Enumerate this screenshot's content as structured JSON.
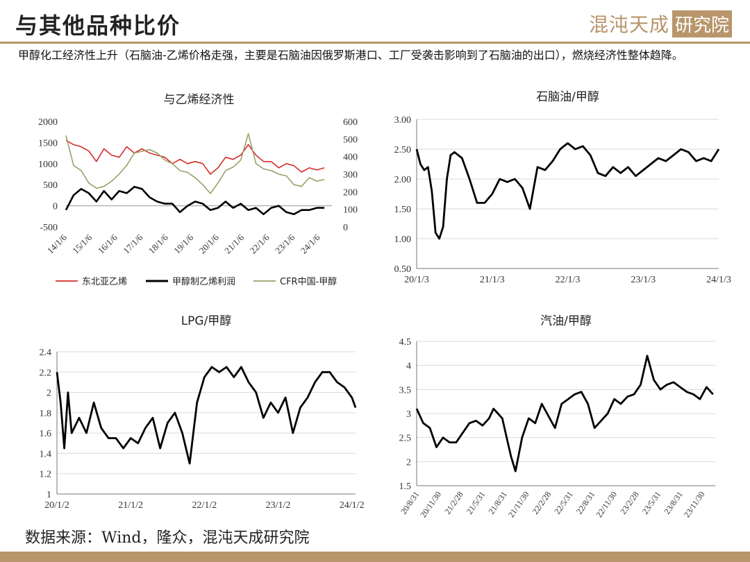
{
  "header": {
    "title": "与其他品种比价",
    "logo_text": "混沌天成",
    "logo_box": "研究院"
  },
  "description": "甲醇化工经济性上升（石脑油-乙烯价格走强，主要是石脑油因俄罗斯港口、工厂受袭击影响到了石脑油的出口），燃烧经济性整体趋降。",
  "footer": {
    "source": "数据来源：Wind，隆众，混沌天成研究院"
  },
  "colors": {
    "accent": "#b8956a",
    "red": "#d62b27",
    "black": "#000000",
    "olive": "#9aa06a"
  },
  "chart_data": [
    {
      "id": "ethylene",
      "type": "line",
      "title": "与乙烯经济性",
      "x_ticks": [
        "14/1/6",
        "15/1/6",
        "16/1/6",
        "17/1/6",
        "18/1/6",
        "19/1/6",
        "20/1/6",
        "21/1/6",
        "22/1/6",
        "23/1/6",
        "24/1/6"
      ],
      "y_left": {
        "ticks": [
          "2000",
          "1500",
          "1000",
          "500",
          "0",
          "-500"
        ],
        "range": [
          -500,
          2000
        ]
      },
      "y_right": {
        "ticks": [
          "600",
          "500",
          "400",
          "300",
          "200",
          "100",
          "0"
        ],
        "range": [
          0,
          600
        ]
      },
      "grid": false,
      "legend_position": "bottom",
      "series": [
        {
          "name": "东北亚乙烯",
          "axis": "left",
          "color": "#d62b27",
          "x": [
            0,
            0.3,
            0.6,
            0.9,
            1.2,
            1.5,
            1.8,
            2.1,
            2.4,
            2.7,
            3.0,
            3.3,
            3.6,
            3.9,
            4.2,
            4.5,
            4.8,
            5.1,
            5.4,
            5.7,
            6.0,
            6.3,
            6.6,
            6.9,
            7.2,
            7.5,
            7.8,
            8.1,
            8.4,
            8.7,
            9.0,
            9.3,
            9.6,
            9.9,
            10.2
          ],
          "values": [
            1550,
            1450,
            1400,
            1300,
            1050,
            1350,
            1200,
            1150,
            1400,
            1250,
            1350,
            1250,
            1200,
            1150,
            1000,
            1100,
            1000,
            1050,
            1000,
            750,
            900,
            1150,
            1100,
            1200,
            1450,
            1200,
            1050,
            1050,
            900,
            1000,
            950,
            800,
            900,
            850,
            900
          ]
        },
        {
          "name": "甲醇制乙烯利润",
          "axis": "left",
          "color": "#000000",
          "x": [
            0,
            0.3,
            0.6,
            0.9,
            1.2,
            1.5,
            1.8,
            2.1,
            2.4,
            2.7,
            3.0,
            3.3,
            3.6,
            3.9,
            4.2,
            4.5,
            4.8,
            5.1,
            5.4,
            5.7,
            6.0,
            6.3,
            6.6,
            6.9,
            7.2,
            7.5,
            7.8,
            8.1,
            8.4,
            8.7,
            9.0,
            9.3,
            9.6,
            9.9,
            10.2
          ],
          "values": [
            -100,
            250,
            400,
            300,
            100,
            350,
            150,
            350,
            300,
            450,
            400,
            200,
            100,
            50,
            50,
            -150,
            0,
            100,
            50,
            -100,
            -50,
            100,
            -50,
            50,
            -100,
            -50,
            -200,
            -50,
            0,
            -150,
            -200,
            -100,
            -100,
            -50,
            -50
          ]
        },
        {
          "name": "CFR中国-甲醇",
          "axis": "right",
          "color": "#9aa06a",
          "x": [
            0,
            0.3,
            0.6,
            0.9,
            1.2,
            1.5,
            1.8,
            2.1,
            2.4,
            2.7,
            3.0,
            3.3,
            3.6,
            3.9,
            4.2,
            4.5,
            4.8,
            5.1,
            5.4,
            5.7,
            6.0,
            6.3,
            6.6,
            6.9,
            7.2,
            7.5,
            7.8,
            8.1,
            8.4,
            8.7,
            9.0,
            9.3,
            9.6,
            9.9,
            10.2
          ],
          "values": [
            520,
            350,
            320,
            250,
            220,
            230,
            260,
            300,
            350,
            420,
            430,
            440,
            420,
            380,
            360,
            320,
            310,
            280,
            240,
            190,
            250,
            320,
            340,
            380,
            530,
            360,
            330,
            320,
            300,
            290,
            240,
            230,
            280,
            260,
            270
          ]
        }
      ]
    },
    {
      "id": "naphtha",
      "type": "line",
      "title": "石脑油/甲醇",
      "x_ticks": [
        "20/1/3",
        "21/1/3",
        "22/1/3",
        "23/1/3",
        "24/1/3"
      ],
      "y_ticks": [
        "3.00",
        "2.50",
        "2.00",
        "1.50",
        "1.00",
        "0.50"
      ],
      "ylim": [
        0.5,
        3.0
      ],
      "grid": true,
      "series": [
        {
          "color": "#000000",
          "x": [
            0,
            0.05,
            0.1,
            0.15,
            0.2,
            0.25,
            0.3,
            0.35,
            0.4,
            0.45,
            0.5,
            0.6,
            0.7,
            0.8,
            0.9,
            1.0,
            1.1,
            1.2,
            1.3,
            1.4,
            1.5,
            1.6,
            1.7,
            1.8,
            1.9,
            2.0,
            2.1,
            2.2,
            2.3,
            2.4,
            2.5,
            2.6,
            2.7,
            2.8,
            2.9,
            3.0,
            3.1,
            3.2,
            3.3,
            3.4,
            3.5,
            3.6,
            3.7,
            3.8,
            3.9,
            4.0
          ],
          "values": [
            2.5,
            2.25,
            2.15,
            2.2,
            1.8,
            1.1,
            1.0,
            1.2,
            2.0,
            2.4,
            2.45,
            2.35,
            2.0,
            1.6,
            1.6,
            1.75,
            2.0,
            1.95,
            2.0,
            1.85,
            1.5,
            2.2,
            2.15,
            2.3,
            2.5,
            2.6,
            2.5,
            2.55,
            2.4,
            2.1,
            2.05,
            2.2,
            2.1,
            2.2,
            2.05,
            2.15,
            2.25,
            2.35,
            2.3,
            2.4,
            2.5,
            2.45,
            2.3,
            2.35,
            2.3,
            2.5
          ]
        }
      ]
    },
    {
      "id": "lpg",
      "type": "line",
      "title": "LPG/甲醇",
      "x_ticks": [
        "20/1/2",
        "21/1/2",
        "22/1/2",
        "23/1/2",
        "24/1/2"
      ],
      "y_ticks": [
        "2.4",
        "2.2",
        "2",
        "1.8",
        "1.6",
        "1.4",
        "1.2",
        "1"
      ],
      "ylim": [
        1.0,
        2.4
      ],
      "grid": true,
      "series": [
        {
          "color": "#000000",
          "x": [
            0,
            0.05,
            0.1,
            0.15,
            0.2,
            0.3,
            0.4,
            0.5,
            0.6,
            0.7,
            0.8,
            0.9,
            1.0,
            1.1,
            1.2,
            1.3,
            1.4,
            1.5,
            1.6,
            1.7,
            1.8,
            1.85,
            1.9,
            2.0,
            2.1,
            2.2,
            2.3,
            2.4,
            2.5,
            2.6,
            2.7,
            2.8,
            2.9,
            3.0,
            3.1,
            3.2,
            3.3,
            3.4,
            3.5,
            3.6,
            3.7,
            3.8,
            3.9,
            4.0,
            4.05
          ],
          "values": [
            2.2,
            1.9,
            1.45,
            2.0,
            1.6,
            1.75,
            1.6,
            1.9,
            1.65,
            1.55,
            1.55,
            1.45,
            1.55,
            1.5,
            1.65,
            1.75,
            1.45,
            1.7,
            1.8,
            1.6,
            1.3,
            1.6,
            1.9,
            2.15,
            2.25,
            2.2,
            2.25,
            2.15,
            2.25,
            2.1,
            2.0,
            1.75,
            1.9,
            1.8,
            1.95,
            1.6,
            1.85,
            1.95,
            2.1,
            2.2,
            2.2,
            2.1,
            2.05,
            1.95,
            1.85
          ]
        }
      ]
    },
    {
      "id": "gasoline",
      "type": "line",
      "title": "汽油/甲醇",
      "x_ticks": [
        "20/8/31",
        "20/11/30",
        "21/2/28",
        "21/5/31",
        "21/8/31",
        "21/11/30",
        "22/2/28",
        "22/5/31",
        "22/8/31",
        "22/11/30",
        "23/2/28",
        "23/5/31",
        "23/8/31",
        "23/11/30"
      ],
      "y_ticks": [
        "4.5",
        "4",
        "3.5",
        "3",
        "2.5",
        "2",
        "1.5"
      ],
      "ylim": [
        1.5,
        4.5
      ],
      "grid": true,
      "series": [
        {
          "color": "#000000",
          "x": [
            0,
            0.3,
            0.6,
            0.9,
            1.2,
            1.5,
            1.8,
            2.1,
            2.4,
            2.7,
            3.0,
            3.3,
            3.5,
            3.7,
            3.9,
            4.1,
            4.3,
            4.5,
            4.8,
            5.1,
            5.4,
            5.7,
            6.0,
            6.3,
            6.6,
            6.9,
            7.2,
            7.5,
            7.8,
            8.1,
            8.4,
            8.7,
            9.0,
            9.3,
            9.6,
            9.9,
            10.2,
            10.5,
            10.8,
            11.1,
            11.4,
            11.7,
            12.0,
            12.3,
            12.6,
            12.9,
            13.2,
            13.5
          ],
          "values": [
            3.1,
            2.8,
            2.7,
            2.3,
            2.5,
            2.4,
            2.4,
            2.6,
            2.8,
            2.85,
            2.75,
            2.9,
            3.1,
            3.0,
            2.9,
            2.5,
            2.1,
            1.8,
            2.5,
            2.9,
            2.8,
            3.2,
            2.95,
            2.7,
            3.2,
            3.3,
            3.4,
            3.45,
            3.2,
            2.7,
            2.85,
            3.0,
            3.3,
            3.2,
            3.35,
            3.4,
            3.6,
            4.2,
            3.7,
            3.5,
            3.6,
            3.65,
            3.55,
            3.45,
            3.4,
            3.3,
            3.55,
            3.4
          ]
        }
      ]
    }
  ]
}
